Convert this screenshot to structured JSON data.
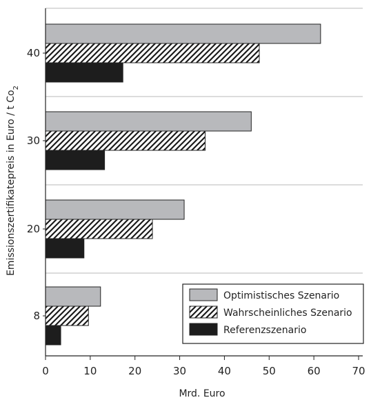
{
  "chart_data": {
    "type": "bar",
    "orientation": "horizontal",
    "categories": [
      "40",
      "30",
      "20",
      "8"
    ],
    "series": [
      {
        "name": "Optimistisches Szenario",
        "values": [
          61.5,
          46,
          31,
          12.3
        ],
        "color": "#b8b9bc",
        "pattern": "solid"
      },
      {
        "name": "Wahrscheinliches Szenario",
        "values": [
          47.8,
          35.7,
          23.9,
          9.6
        ],
        "color": "#1a1a1a",
        "pattern": "diagonal-hatch"
      },
      {
        "name": "Referenzszenario",
        "values": [
          17.3,
          13.2,
          8.6,
          3.4
        ],
        "color": "#1d1d1d",
        "pattern": "solid"
      }
    ],
    "xlabel": "Mrd. Euro",
    "ylabel": "Emissionszertifikatepreis in Euro / t Co",
    "ylabel_subscript": "2",
    "xlim": [
      0,
      70
    ],
    "xticks": [
      "0",
      "10",
      "20",
      "30",
      "40",
      "50",
      "60",
      "70"
    ],
    "grid": "horizontal-separators",
    "legend": "bottom-right"
  }
}
